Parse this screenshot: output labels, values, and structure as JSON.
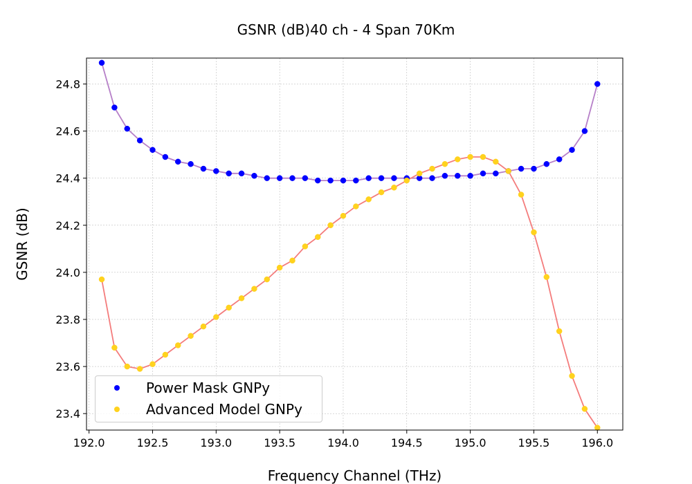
{
  "chart_data": {
    "type": "scatter",
    "title": "GSNR (dB)40 ch - 4 Span 70Km",
    "xlabel": "Frequency Channel (THz)",
    "ylabel": "GSNR (dB)",
    "xlim": [
      191.98,
      196.2
    ],
    "ylim": [
      23.33,
      24.91
    ],
    "x_ticks": [
      "192.0",
      "192.5",
      "193.0",
      "193.5",
      "194.0",
      "194.5",
      "195.0",
      "195.5",
      "196.0"
    ],
    "y_ticks": [
      "23.4",
      "23.6",
      "23.8",
      "24.0",
      "24.2",
      "24.4",
      "24.6",
      "24.8"
    ],
    "grid": true,
    "legend_position": "lower-left",
    "x": [
      192.1,
      192.2,
      192.3,
      192.4,
      192.5,
      192.6,
      192.7,
      192.8,
      192.9,
      193.0,
      193.1,
      193.2,
      193.3,
      193.4,
      193.5,
      193.6,
      193.7,
      193.8,
      193.9,
      194.0,
      194.1,
      194.2,
      194.3,
      194.4,
      194.5,
      194.6,
      194.7,
      194.8,
      194.9,
      195.0,
      195.1,
      195.2,
      195.3,
      195.4,
      195.5,
      195.6,
      195.7,
      195.8,
      195.9,
      196.0
    ],
    "series": [
      {
        "name": "Power Mask GNPy",
        "marker_color": "#0000ff",
        "line_color": "#b67fc8",
        "values": [
          24.89,
          24.7,
          24.61,
          24.56,
          24.52,
          24.49,
          24.47,
          24.46,
          24.44,
          24.43,
          24.42,
          24.42,
          24.41,
          24.4,
          24.4,
          24.4,
          24.4,
          24.39,
          24.39,
          24.39,
          24.39,
          24.4,
          24.4,
          24.4,
          24.4,
          24.4,
          24.4,
          24.41,
          24.41,
          24.41,
          24.42,
          24.42,
          24.43,
          24.44,
          24.44,
          24.46,
          24.48,
          24.52,
          24.6,
          24.8
        ]
      },
      {
        "name": "Advanced Model GNPy",
        "marker_color": "#ffd21e",
        "line_color": "#f47c7c",
        "values": [
          23.97,
          23.68,
          23.6,
          23.59,
          23.61,
          23.65,
          23.69,
          23.73,
          23.77,
          23.81,
          23.85,
          23.89,
          23.93,
          23.97,
          24.02,
          24.05,
          24.11,
          24.15,
          24.2,
          24.24,
          24.28,
          24.31,
          24.34,
          24.36,
          24.39,
          24.42,
          24.44,
          24.46,
          24.48,
          24.49,
          24.49,
          24.47,
          24.43,
          24.33,
          24.17,
          23.98,
          23.75,
          23.56,
          23.42,
          23.34
        ]
      }
    ]
  }
}
